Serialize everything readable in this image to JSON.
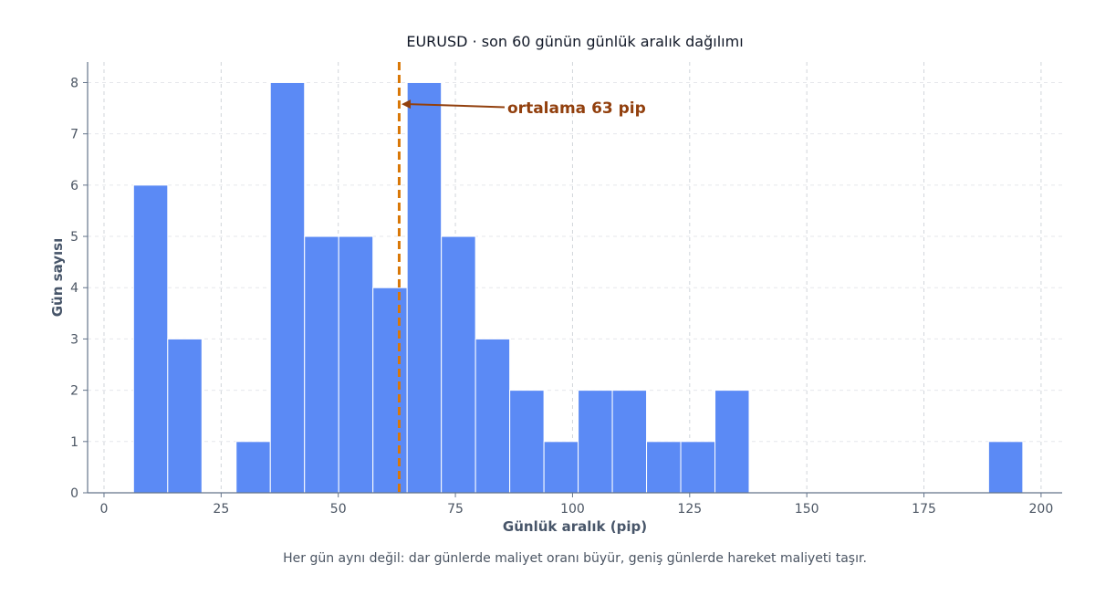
{
  "chart_data": {
    "type": "bar",
    "title": "EURUSD · son 60 günün günlük aralık dağılımı",
    "xlabel": "Günlük aralık (pip)",
    "ylabel": "Gün sayısı",
    "caption": "Her gün aynı değil: dar günlerde maliyet oranı büyür, geniş günlerde hareket maliyeti taşır.",
    "xlim": [
      -3.5,
      204.5
    ],
    "ylim": [
      0,
      8.4
    ],
    "x_ticks": [
      0,
      25,
      50,
      75,
      100,
      125,
      150,
      175,
      200
    ],
    "y_ticks": [
      0,
      1,
      2,
      3,
      4,
      5,
      6,
      7,
      8
    ],
    "grid": true,
    "bins": [
      {
        "x0": 6.3,
        "x1": 13.6,
        "count": 6
      },
      {
        "x0": 13.6,
        "x1": 20.9,
        "count": 3
      },
      {
        "x0": 20.9,
        "x1": 28.2,
        "count": 0
      },
      {
        "x0": 28.2,
        "x1": 35.5,
        "count": 1
      },
      {
        "x0": 35.5,
        "x1": 42.8,
        "count": 8
      },
      {
        "x0": 42.8,
        "x1": 50.1,
        "count": 5
      },
      {
        "x0": 50.1,
        "x1": 57.4,
        "count": 5
      },
      {
        "x0": 57.4,
        "x1": 64.7,
        "count": 4
      },
      {
        "x0": 64.7,
        "x1": 72.0,
        "count": 8
      },
      {
        "x0": 72.0,
        "x1": 79.3,
        "count": 5
      },
      {
        "x0": 79.3,
        "x1": 86.6,
        "count": 3
      },
      {
        "x0": 86.6,
        "x1": 93.9,
        "count": 2
      },
      {
        "x0": 93.9,
        "x1": 101.2,
        "count": 1
      },
      {
        "x0": 101.2,
        "x1": 108.5,
        "count": 2
      },
      {
        "x0": 108.5,
        "x1": 115.8,
        "count": 2
      },
      {
        "x0": 115.8,
        "x1": 123.1,
        "count": 1
      },
      {
        "x0": 123.1,
        "x1": 130.4,
        "count": 1
      },
      {
        "x0": 130.4,
        "x1": 137.7,
        "count": 2
      },
      {
        "x0": 137.7,
        "x1": 145.0,
        "count": 0
      },
      {
        "x0": 145.0,
        "x1": 152.3,
        "count": 0
      },
      {
        "x0": 152.3,
        "x1": 159.6,
        "count": 0
      },
      {
        "x0": 159.6,
        "x1": 166.9,
        "count": 0
      },
      {
        "x0": 166.9,
        "x1": 174.2,
        "count": 0
      },
      {
        "x0": 174.2,
        "x1": 181.5,
        "count": 0
      },
      {
        "x0": 181.5,
        "x1": 188.8,
        "count": 0
      },
      {
        "x0": 188.8,
        "x1": 196.1,
        "count": 1
      }
    ],
    "mean": {
      "value": 63,
      "label": "ortalama 63 pip",
      "arrow_from": {
        "x": 85.5,
        "y": 7.52
      },
      "arrow_to": {
        "x": 63.5,
        "y": 7.58
      }
    },
    "colors": {
      "bar": "#5b8af5",
      "bar_edge": "#ffffff",
      "mean_line": "#d97706",
      "annotation": "#92400e",
      "axis": "#64748b",
      "grid": "#d1d5db"
    }
  }
}
